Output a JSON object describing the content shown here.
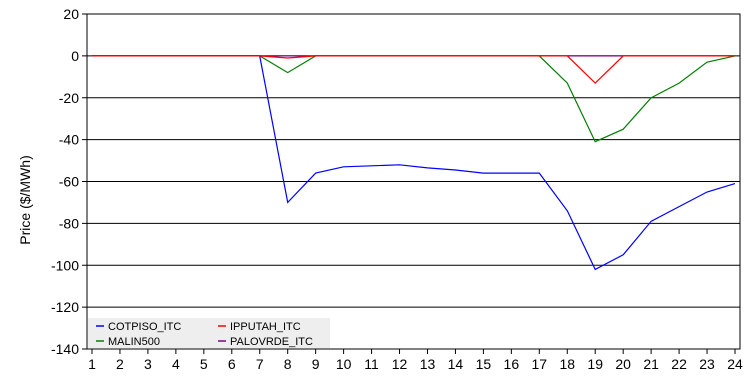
{
  "chart_data": {
    "type": "line",
    "ylabel": "Price ($/MWh)",
    "xlabel": "",
    "title": "",
    "x": [
      1,
      2,
      3,
      4,
      5,
      6,
      7,
      8,
      9,
      10,
      11,
      12,
      13,
      14,
      15,
      16,
      17,
      18,
      19,
      20,
      21,
      22,
      23,
      24
    ],
    "ylim": [
      -140,
      20
    ],
    "yticks": [
      20,
      0,
      -20,
      -40,
      -60,
      -80,
      -100,
      -120,
      -140
    ],
    "grid": "horizontal",
    "legend_position": "bottom-left",
    "series": [
      {
        "name": "COTPISO_ITC",
        "color": "#0000ff",
        "values": [
          0,
          0,
          0,
          0,
          0,
          0,
          0,
          -70,
          -56,
          -53,
          -52.5,
          -52,
          -53.5,
          -54.5,
          -56,
          -56,
          -56,
          -74,
          -102,
          -95,
          -79,
          -72,
          -65,
          -61
        ]
      },
      {
        "name": "IPPUTAH_ITC",
        "color": "#ff0000",
        "values": [
          0,
          0,
          0,
          0,
          0,
          0,
          0,
          -1,
          0,
          0,
          0,
          0,
          0,
          0,
          0,
          0,
          0,
          0,
          -13,
          0,
          0,
          0,
          0,
          0
        ]
      },
      {
        "name": "MALIN500",
        "color": "#008000",
        "values": [
          0,
          0,
          0,
          0,
          0,
          0,
          0,
          -8,
          0,
          0,
          0,
          0,
          0,
          0,
          0,
          0,
          0,
          -13,
          -41,
          -35,
          -20,
          -13,
          -3,
          0
        ]
      },
      {
        "name": "PALOVRDE_ITC",
        "color": "#800080",
        "values": [
          0,
          0,
          0,
          0,
          0,
          0,
          0,
          0,
          0,
          0,
          0,
          0,
          0,
          0,
          0,
          0,
          0,
          0,
          0,
          0,
          0,
          0,
          0,
          0
        ]
      }
    ]
  }
}
